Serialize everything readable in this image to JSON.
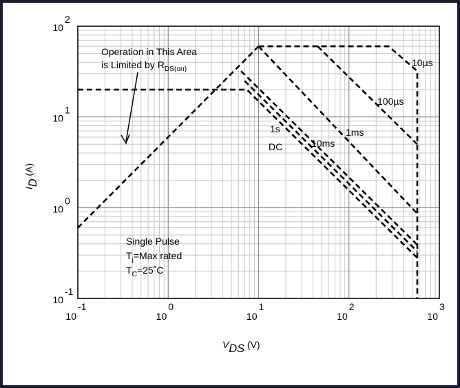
{
  "chart_data": {
    "type": "line",
    "x_label": [
      "V",
      "DS",
      " (V)"
    ],
    "y_label": [
      "I",
      "D",
      " (A)"
    ],
    "log_x": true,
    "log_y": true,
    "grid": true,
    "xlim": [
      0.1,
      1000
    ],
    "ylim": [
      0.1,
      100
    ],
    "xticks": [
      {
        "value": 0.1,
        "label": "10",
        "sup": "-1"
      },
      {
        "value": 1,
        "label": "10",
        "sup": "0"
      },
      {
        "value": 10,
        "label": "10",
        "sup": "1"
      },
      {
        "value": 100,
        "label": "10",
        "sup": "2"
      },
      {
        "value": 1000,
        "label": "10",
        "sup": "3"
      }
    ],
    "yticks": [
      {
        "value": 0.1,
        "label": "10",
        "sup": "-1"
      },
      {
        "value": 1,
        "label": "10",
        "sup": "0"
      },
      {
        "value": 10,
        "label": "10",
        "sup": "1"
      },
      {
        "value": 100,
        "label": "10",
        "sup": "2"
      }
    ],
    "series": [
      {
        "color": "#000000",
        "x": [
          0.1,
          10
        ],
        "values": [
          0.6,
          60
        ]
      },
      {
        "name": "10µs",
        "color": "#000000",
        "x": [
          10,
          275,
          570,
          570
        ],
        "values": [
          60,
          60,
          32,
          0.1
        ]
      },
      {
        "name": "100µs",
        "color": "#000000",
        "x": [
          45,
          570
        ],
        "values": [
          60,
          5
        ]
      },
      {
        "name": "1ms",
        "color": "#000000",
        "x": [
          10,
          570
        ],
        "values": [
          60,
          0.86
        ]
      },
      {
        "name": "10ms",
        "color": "#000000",
        "x": [
          6.4,
          570
        ],
        "values": [
          32,
          0.39
        ]
      },
      {
        "name": "1s",
        "color": "#000000",
        "x": [
          7,
          570
        ],
        "values": [
          25,
          0.33
        ]
      },
      {
        "name": "DC",
        "color": "#000000",
        "x": [
          0.1,
          7.4,
          570
        ],
        "values": [
          20,
          20,
          0.28
        ]
      }
    ],
    "annotation_limit": [
      [
        "Operation  in This Area"
      ],
      [
        "is Limited by R",
        "DS(on)"
      ]
    ],
    "annotation_conditions": [
      [
        "Single Pulse"
      ],
      [
        "T",
        "j",
        "=Max rated"
      ],
      [
        "T",
        "C",
        "=25˚C"
      ]
    ]
  }
}
